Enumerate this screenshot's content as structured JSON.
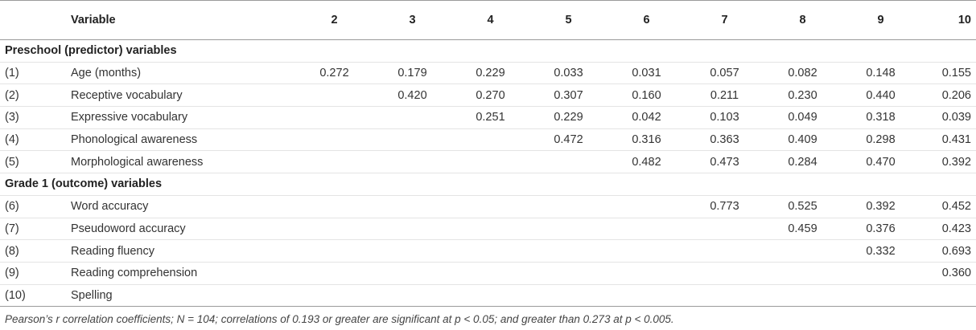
{
  "header": {
    "variable_label": "Variable",
    "columns": [
      "2",
      "3",
      "4",
      "5",
      "6",
      "7",
      "8",
      "9",
      "10"
    ]
  },
  "sections": [
    {
      "title": "Preschool (predictor) variables",
      "rows": [
        {
          "num": "(1)",
          "name": "Age (months)",
          "values": [
            "0.272",
            "0.179",
            "0.229",
            "0.033",
            "0.031",
            "0.057",
            "0.082",
            "0.148",
            "0.155"
          ]
        },
        {
          "num": "(2)",
          "name": "Receptive vocabulary",
          "values": [
            "",
            "0.420",
            "0.270",
            "0.307",
            "0.160",
            "0.211",
            "0.230",
            "0.440",
            "0.206"
          ]
        },
        {
          "num": "(3)",
          "name": "Expressive vocabulary",
          "values": [
            "",
            "",
            "0.251",
            "0.229",
            "0.042",
            "0.103",
            "0.049",
            "0.318",
            "0.039"
          ]
        },
        {
          "num": "(4)",
          "name": "Phonological awareness",
          "values": [
            "",
            "",
            "",
            "0.472",
            "0.316",
            "0.363",
            "0.409",
            "0.298",
            "0.431"
          ]
        },
        {
          "num": "(5)",
          "name": "Morphological awareness",
          "values": [
            "",
            "",
            "",
            "",
            "0.482",
            "0.473",
            "0.284",
            "0.470",
            "0.392"
          ]
        }
      ]
    },
    {
      "title": "Grade 1 (outcome) variables",
      "rows": [
        {
          "num": "(6)",
          "name": "Word accuracy",
          "values": [
            "",
            "",
            "",
            "",
            "",
            "0.773",
            "0.525",
            "0.392",
            "0.452"
          ]
        },
        {
          "num": "(7)",
          "name": "Pseudoword accuracy",
          "values": [
            "",
            "",
            "",
            "",
            "",
            "",
            "0.459",
            "0.376",
            "0.423"
          ]
        },
        {
          "num": "(8)",
          "name": "Reading fluency",
          "values": [
            "",
            "",
            "",
            "",
            "",
            "",
            "",
            "0.332",
            "0.693"
          ]
        },
        {
          "num": "(9)",
          "name": "Reading comprehension",
          "values": [
            "",
            "",
            "",
            "",
            "",
            "",
            "",
            "",
            "0.360"
          ]
        },
        {
          "num": "(10)",
          "name": "Spelling",
          "values": [
            "",
            "",
            "",
            "",
            "",
            "",
            "",
            "",
            ""
          ]
        }
      ]
    }
  ],
  "footnote": "Pearson’s r correlation coefficients; N = 104; correlations of 0.193 or greater are significant at p < 0.05; and greater than 0.273 at p < 0.005."
}
